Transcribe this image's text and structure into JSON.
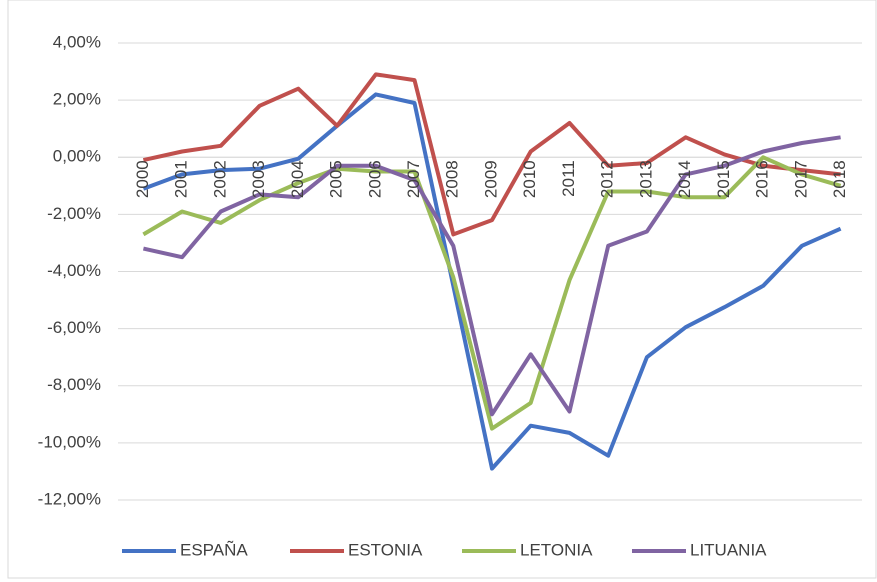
{
  "chart_data": {
    "type": "line",
    "categories": [
      "2000",
      "2001",
      "2002",
      "2003",
      "2004",
      "2005",
      "2006",
      "2007",
      "2008",
      "2009",
      "2010",
      "2011",
      "2012",
      "2013",
      "2014",
      "2015",
      "2016",
      "2017",
      "2018"
    ],
    "series": [
      {
        "name": "ESPAÑA",
        "color": "#4472c4",
        "values": [
          -1.1,
          -0.6,
          -0.45,
          -0.4,
          -0.05,
          1.1,
          2.2,
          1.9,
          -4.5,
          -10.9,
          -9.4,
          -9.65,
          -10.45,
          -7.0,
          -5.95,
          -5.25,
          -4.5,
          -3.1,
          -2.5
        ]
      },
      {
        "name": "ESTONIA",
        "color": "#c0504d",
        "values": [
          -0.1,
          0.2,
          0.4,
          1.8,
          2.4,
          1.1,
          2.9,
          2.7,
          -2.7,
          -2.2,
          0.2,
          1.2,
          -0.3,
          -0.2,
          0.7,
          0.1,
          -0.3,
          -0.45,
          -0.6
        ]
      },
      {
        "name": "LETONIA",
        "color": "#9bbb59",
        "values": [
          -2.7,
          -1.9,
          -2.3,
          -1.5,
          -0.9,
          -0.4,
          -0.5,
          -0.5,
          -4.2,
          -9.5,
          -8.6,
          -4.3,
          -1.2,
          -1.2,
          -1.4,
          -1.4,
          0.0,
          -0.6,
          -1.0
        ]
      },
      {
        "name": "LITUANIA",
        "color": "#8064a2",
        "values": [
          -3.2,
          -3.5,
          -1.9,
          -1.3,
          -1.4,
          -0.3,
          -0.3,
          -0.8,
          -3.1,
          -9.0,
          -6.9,
          -8.9,
          -3.1,
          -2.6,
          -0.6,
          -0.3,
          0.2,
          0.5,
          0.7
        ]
      }
    ],
    "ylim": [
      -12,
      4
    ],
    "yticks": [
      {
        "value": 4,
        "label": "4,00%"
      },
      {
        "value": 2,
        "label": "2,00%"
      },
      {
        "value": 0,
        "label": "0,00%"
      },
      {
        "value": -2,
        "label": "-2,00%"
      },
      {
        "value": -4,
        "label": "-4,00%"
      },
      {
        "value": -6,
        "label": "-6,00%"
      },
      {
        "value": -8,
        "label": "-8,00%"
      },
      {
        "value": -10,
        "label": "-10,00%"
      },
      {
        "value": -12,
        "label": "-12,00%"
      }
    ],
    "grid": true,
    "legend": "bottom"
  }
}
